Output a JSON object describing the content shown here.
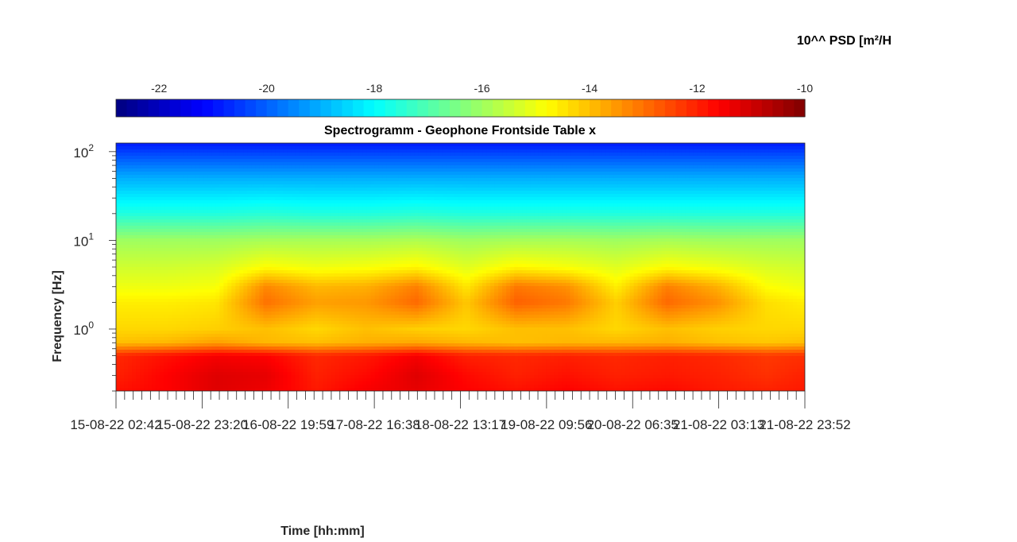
{
  "chart_data": {
    "type": "heatmap",
    "title": "Spectrogramm - Geophone Frontside Table x",
    "xlabel": "Time [hh:mm]",
    "ylabel": "Frequency [Hz]",
    "colorbar": {
      "label": "10^^ PSD [m²/H",
      "range": [
        -22.8,
        -10
      ],
      "ticks": [
        -22,
        -20,
        -18,
        -16,
        -14,
        -12,
        -10
      ],
      "tick_labels": [
        "-22",
        "-20",
        "-18",
        "-16",
        "-14",
        "-12",
        "-10"
      ],
      "colormap": "jet",
      "placement": "top"
    },
    "x_axis": {
      "range": [
        "15-08-22 02:42",
        "21-08-22 23:52"
      ],
      "tick_labels": [
        "15-08-22 02:42",
        "15-08-22 23:20",
        "16-08-22 19:59",
        "17-08-22 16:38",
        "18-08-22 13:17",
        "19-08-22 09:56",
        "20-08-22 06:35",
        "21-08-22 03:13",
        "21-08-22 23:52"
      ]
    },
    "y_axis": {
      "scale": "log",
      "range": [
        0.2,
        125
      ],
      "ticks": [
        1,
        10,
        100
      ],
      "tick_labels": [
        {
          "base": "10",
          "exp": "0"
        },
        {
          "base": "10",
          "exp": "1"
        },
        {
          "base": "10",
          "exp": "2"
        }
      ]
    },
    "time_days": [
      0,
      0.5,
      1,
      1.5,
      2,
      2.5,
      3,
      3.5,
      4,
      4.5,
      5,
      5.5,
      6,
      6.5,
      6.88
    ],
    "freq_hz": [
      0.2,
      0.3,
      0.5,
      0.7,
      1,
      2,
      3,
      5,
      10,
      20,
      50,
      120
    ],
    "log10_psd": [
      [
        -11.8,
        -11.6,
        -11.2,
        -11.4,
        -11.9,
        -11.5,
        -11.3,
        -11.6,
        -11.8,
        -11.6,
        -11.8,
        -11.7,
        -11.9,
        -12.0,
        -11.9
      ],
      [
        -12.0,
        -11.6,
        -11.2,
        -11.3,
        -12.0,
        -11.7,
        -11.2,
        -11.7,
        -12.0,
        -11.8,
        -12.0,
        -11.9,
        -12.0,
        -12.2,
        -12.0
      ],
      [
        -12.1,
        -11.8,
        -11.5,
        -11.6,
        -12.1,
        -11.9,
        -11.5,
        -12.0,
        -12.1,
        -12.0,
        -12.1,
        -12.0,
        -12.1,
        -12.3,
        -12.2
      ],
      [
        -14.0,
        -13.9,
        -13.6,
        -13.9,
        -14.0,
        -13.8,
        -13.7,
        -13.9,
        -14.0,
        -13.9,
        -13.9,
        -13.8,
        -14.0,
        -14.1,
        -14.0
      ],
      [
        -14.3,
        -14.3,
        -14.2,
        -14.0,
        -14.3,
        -14.0,
        -14.2,
        -14.3,
        -14.0,
        -14.0,
        -14.3,
        -14.0,
        -14.2,
        -14.3,
        -14.3
      ],
      [
        -14.6,
        -14.6,
        -14.5,
        -13.0,
        -13.6,
        -13.5,
        -12.9,
        -14.1,
        -12.8,
        -13.1,
        -14.2,
        -12.9,
        -13.4,
        -14.4,
        -14.6
      ],
      [
        -15.0,
        -15.0,
        -14.9,
        -13.3,
        -13.9,
        -13.8,
        -13.2,
        -14.5,
        -13.1,
        -13.4,
        -14.6,
        -13.2,
        -13.8,
        -14.8,
        -15.0
      ],
      [
        -15.4,
        -15.4,
        -15.3,
        -14.8,
        -15.0,
        -14.9,
        -14.7,
        -15.2,
        -14.7,
        -14.9,
        -15.2,
        -14.8,
        -15.0,
        -15.3,
        -15.4
      ],
      [
        -16.0,
        -16.0,
        -16.0,
        -15.9,
        -15.9,
        -15.9,
        -15.8,
        -16.0,
        -15.9,
        -15.9,
        -16.0,
        -15.9,
        -16.0,
        -16.0,
        -16.0
      ],
      [
        -17.6,
        -17.6,
        -17.6,
        -17.5,
        -17.6,
        -17.6,
        -17.5,
        -17.6,
        -17.6,
        -17.6,
        -17.6,
        -17.6,
        -17.6,
        -17.6,
        -17.6
      ],
      [
        -19.0,
        -19.0,
        -19.0,
        -19.0,
        -19.0,
        -19.0,
        -19.0,
        -19.0,
        -19.0,
        -19.0,
        -19.0,
        -19.0,
        -19.0,
        -19.0,
        -19.0
      ],
      [
        -20.8,
        -20.8,
        -20.8,
        -20.8,
        -20.8,
        -20.8,
        -20.8,
        -20.8,
        -20.8,
        -20.8,
        -20.8,
        -20.8,
        -20.8,
        -20.8,
        -20.8
      ]
    ],
    "grid": false
  }
}
